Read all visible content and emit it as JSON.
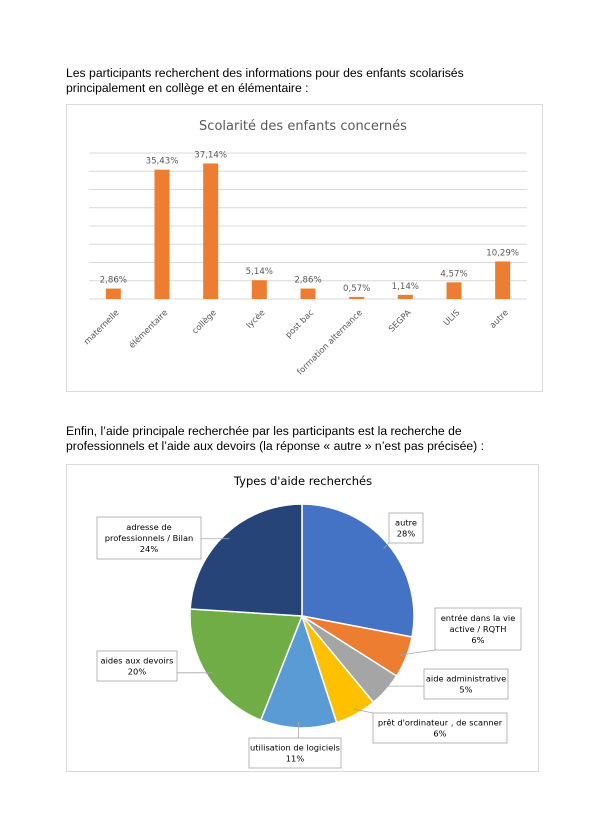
{
  "intro1": {
    "line1": "Les participants recherchent des informations pour des enfants scolarisés",
    "line2": "principalement en collège et en élémentaire :"
  },
  "intro2": {
    "line1": "Enfin, l’aide principale recherchée par les participants est la recherche de",
    "line2": "professionnels et l’aide aux devoirs (la réponse « autre » n’est pas précisée) :"
  },
  "chart_data": [
    {
      "type": "bar",
      "title": "Scolarité des enfants concernés",
      "categories": [
        "maternelle",
        "élémentaire",
        "collège",
        "lycée",
        "post bac",
        "formation alternance",
        "SEGPA",
        "ULIS",
        "autre"
      ],
      "values": [
        2.86,
        35.43,
        37.14,
        5.14,
        2.86,
        0.57,
        1.14,
        4.57,
        10.29
      ],
      "value_labels": [
        "2,86%",
        "35,43%",
        "37,14%",
        "5,14%",
        "2,86%",
        "0,57%",
        "1,14%",
        "4,57%",
        "10,29%"
      ],
      "ylim": [
        0,
        40
      ],
      "grid": true,
      "bar_color": "#ED7D31",
      "grid_color": "#D9D9D9",
      "legend": "none"
    },
    {
      "type": "pie",
      "title": "Types d'aide recherchés",
      "slices": [
        {
          "label": [
            "autre"
          ],
          "pct": "28%",
          "value": 28,
          "color": "#4472C4"
        },
        {
          "label": [
            "entrée dans la vie",
            "active / RQTH"
          ],
          "pct": "6%",
          "value": 6,
          "color": "#ED7D31"
        },
        {
          "label": [
            "aide administrative"
          ],
          "pct": "5%",
          "value": 5,
          "color": "#A5A5A5"
        },
        {
          "label": [
            "prêt d'ordinateur , de scanner"
          ],
          "pct": "6%",
          "value": 6,
          "color": "#FFC000"
        },
        {
          "label": [
            "utilisation de logiciels"
          ],
          "pct": "11%",
          "value": 11,
          "color": "#5B9BD5"
        },
        {
          "label": [
            "aides aux devoirs"
          ],
          "pct": "20%",
          "value": 20,
          "color": "#70AD47"
        },
        {
          "label": [
            "adresse de",
            "professionnels / Bilan"
          ],
          "pct": "24%",
          "value": 24,
          "color": "#264478"
        }
      ],
      "legend": "none"
    }
  ]
}
